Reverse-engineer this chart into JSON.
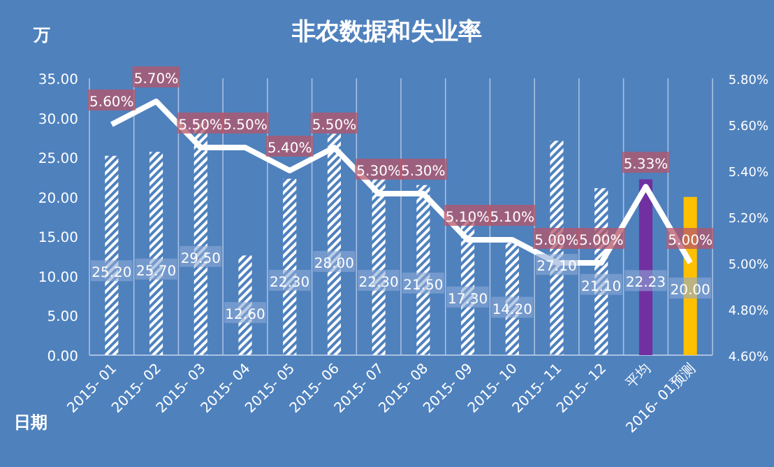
{
  "chart_data": {
    "type": "bar",
    "title": "非农数据和失业率",
    "xlabel": "日期",
    "ylabel": "万",
    "categories": [
      "2015- 01",
      "2015- 02",
      "2015- 03",
      "2015- 04",
      "2015- 05",
      "2015- 06",
      "2015- 07",
      "2015- 08",
      "2015- 09",
      "2015- 10",
      "2015- 11",
      "2015- 12",
      "平均",
      "2016- 01预测"
    ],
    "series": [
      {
        "colors": [
          "#ffffff",
          "#ffffff",
          "#ffffff",
          "#ffffff",
          "#ffffff",
          "#ffffff",
          "#ffffff",
          "#ffffff",
          "#ffffff",
          "#ffffff",
          "#ffffff",
          "#ffffff",
          "#7030a0",
          "#ffc000"
        ],
        "values": [
          25.2,
          25.7,
          29.5,
          12.6,
          22.3,
          28.0,
          22.3,
          21.5,
          17.3,
          14.2,
          27.1,
          21.1,
          22.23,
          20.0
        ],
        "value_labels": [
          "25.20",
          "25.70",
          "29.50",
          "12.60",
          "22.30",
          "28.00",
          "22.30",
          "21.50",
          "17.30",
          "14.20",
          "27.10",
          "21.10",
          "22.23",
          "20.00"
        ]
      },
      {
        "type": "line",
        "axis": "y2",
        "color": "#ffffff",
        "values": [
          5.6,
          5.7,
          5.5,
          5.5,
          5.4,
          5.5,
          5.3,
          5.3,
          5.1,
          5.1,
          5.0,
          5.0,
          5.33,
          5.0
        ],
        "value_labels": [
          "5.60%",
          "5.70%",
          "5.50%",
          "5.50%",
          "5.40%",
          "5.50%",
          "5.30%",
          "5.30%",
          "5.10%",
          "5.10%",
          "5.00%",
          "5.00%",
          "5.33%",
          "5.00%"
        ]
      }
    ],
    "ylim": [
      0,
      35
    ],
    "yticks": [
      {
        "value": 0,
        "label": "0.00"
      },
      {
        "value": 5,
        "label": "5.00"
      },
      {
        "value": 10,
        "label": "10.00"
      },
      {
        "value": 15,
        "label": "15.00"
      },
      {
        "value": 20,
        "label": "20.00"
      },
      {
        "value": 25,
        "label": "25.00"
      },
      {
        "value": 30,
        "label": "30.00"
      },
      {
        "value": 35,
        "label": "35.00"
      }
    ],
    "y2lim": [
      4.6,
      5.8
    ],
    "y2ticks": [
      {
        "value": 4.6,
        "label": "4.60%"
      },
      {
        "value": 4.8,
        "label": "4.80%"
      },
      {
        "value": 5.0,
        "label": "5.00%"
      },
      {
        "value": 5.2,
        "label": "5.20%"
      },
      {
        "value": 5.4,
        "label": "5.40%"
      },
      {
        "value": 5.6,
        "label": "5.60%"
      },
      {
        "value": 5.8,
        "label": "5.80%"
      }
    ],
    "grid": "x",
    "marker": "none",
    "line_style": "solid"
  }
}
